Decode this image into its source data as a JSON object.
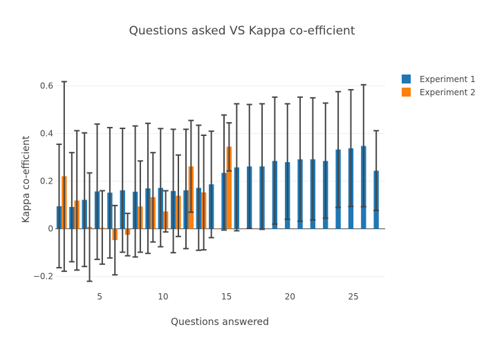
{
  "colors": {
    "experiment_1": "#1f77b4",
    "experiment_2": "#ff7f0e"
  },
  "chart_data": {
    "type": "bar",
    "title": "Questions asked VS Kappa co-efficient",
    "xlabel": "Questions answered",
    "ylabel": "Kappa co-efficient",
    "x_tick_values": [
      5,
      10,
      15,
      20,
      25
    ],
    "x_tick_labels": [
      "5",
      "10",
      "15",
      "20",
      "25"
    ],
    "y_tick_values": [
      -0.2,
      0,
      0.2,
      0.4,
      0.6
    ],
    "y_tick_labels": [
      "−0.2",
      "0",
      "0.2",
      "0.4",
      "0.6"
    ],
    "xlim": [
      1.5,
      27.5
    ],
    "ylim": [
      -0.25,
      0.7
    ],
    "grid": true,
    "legend_position": "top-right",
    "series": [
      {
        "name": "Experiment 1",
        "color": "#1f77b4",
        "x": [
          2,
          3,
          4,
          5,
          6,
          7,
          8,
          9,
          10,
          11,
          12,
          13,
          14,
          15,
          16,
          17,
          18,
          19,
          20,
          21,
          22,
          23,
          24,
          25,
          26,
          27
        ],
        "values": [
          0.095,
          0.092,
          0.122,
          0.157,
          0.152,
          0.162,
          0.156,
          0.17,
          0.172,
          0.159,
          0.162,
          0.172,
          0.187,
          0.235,
          0.258,
          0.262,
          0.262,
          0.285,
          0.28,
          0.292,
          0.292,
          0.285,
          0.333,
          0.338,
          0.348,
          0.244
        ],
        "error_upper": [
          0.355,
          0.32,
          0.403,
          0.44,
          0.425,
          0.422,
          0.432,
          0.443,
          0.421,
          0.418,
          0.418,
          0.435,
          0.41,
          0.478,
          0.525,
          0.522,
          0.525,
          0.553,
          0.525,
          0.553,
          0.55,
          0.528,
          0.576,
          0.584,
          0.605,
          0.412
        ],
        "error_lower": [
          -0.163,
          -0.138,
          -0.158,
          -0.128,
          -0.122,
          -0.098,
          -0.118,
          -0.103,
          -0.075,
          -0.1,
          -0.083,
          -0.09,
          -0.037,
          -0.005,
          -0.008,
          0.002,
          -0.002,
          0.02,
          0.04,
          0.032,
          0.037,
          0.045,
          0.09,
          0.094,
          0.093,
          0.077
        ]
      },
      {
        "name": "Experiment 2",
        "color": "#ff7f0e",
        "x": [
          2,
          3,
          4,
          5,
          6,
          7,
          8,
          9,
          10,
          11,
          12,
          13,
          14,
          15
        ],
        "values": [
          0.221,
          0.119,
          0.008,
          0.005,
          -0.047,
          -0.025,
          0.094,
          0.133,
          0.073,
          0.139,
          0.262,
          0.153,
          0.0,
          0.345
        ],
        "error_upper": [
          0.618,
          0.412,
          0.235,
          0.16,
          0.098,
          0.065,
          0.285,
          0.32,
          0.16,
          0.31,
          0.455,
          0.393,
          null,
          0.445
        ],
        "error_lower": [
          -0.178,
          -0.173,
          -0.22,
          -0.148,
          -0.193,
          -0.113,
          -0.098,
          -0.055,
          -0.013,
          -0.032,
          0.07,
          -0.088,
          null,
          0.243
        ]
      }
    ]
  }
}
